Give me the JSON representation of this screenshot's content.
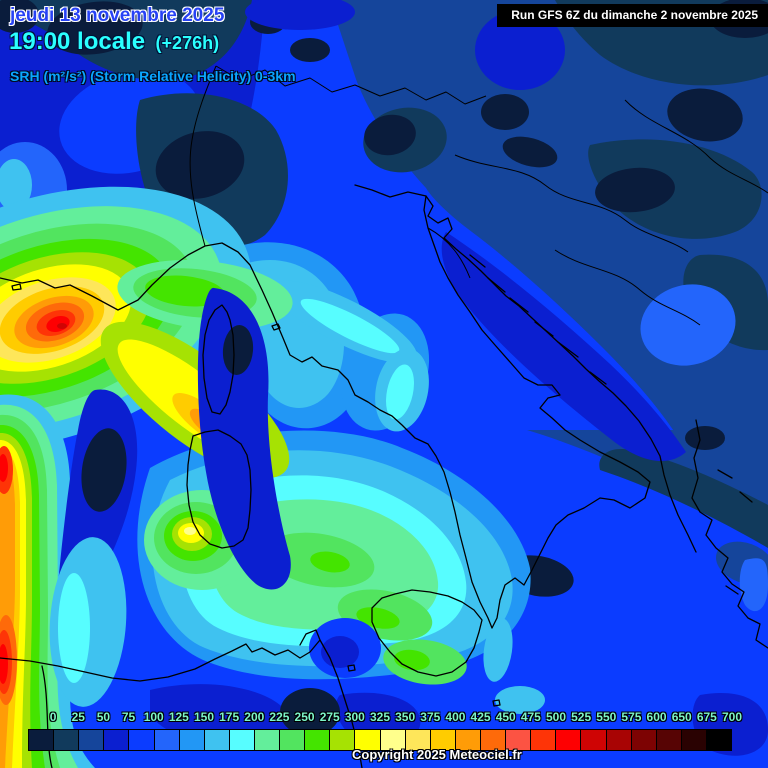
{
  "header": {
    "date": "jeudi 13 novembre 2025",
    "time": "19:00 locale",
    "forecast_offset": "(+276h)",
    "parameter": "SRH (m²/s²) (Storm Relative Helicity) 0-3km"
  },
  "run_info": {
    "label": "Run GFS 6Z du dimanche 2 novembre 2025"
  },
  "copyright": "Copyright 2025 Meteociel.fr",
  "colorbar": {
    "labels": [
      "0",
      "25",
      "50",
      "75",
      "100",
      "125",
      "150",
      "175",
      "200",
      "225",
      "250",
      "275",
      "300",
      "325",
      "350",
      "375",
      "400",
      "425",
      "450",
      "475",
      "500",
      "525",
      "550",
      "575",
      "600",
      "650",
      "675",
      "700"
    ],
    "cell_colors": [
      "#0A1C3C",
      "#113A5C",
      "#15459B",
      "#0B1FD0",
      "#0B3CFF",
      "#2365FB",
      "#2297F5",
      "#3FC2F0",
      "#57FDFF",
      "#63EE9B",
      "#52E45F",
      "#44E400",
      "#A6E203",
      "#FFFF00",
      "#FFFF8C",
      "#FEE65A",
      "#FFCC00",
      "#FF9C07",
      "#FE6A0A",
      "#FC5343",
      "#FE3407",
      "#FE0002",
      "#CF0404",
      "#A80404",
      "#7D0303",
      "#570404",
      "#2A0202",
      "#000000"
    ],
    "label_color": "#7DF5C8"
  },
  "colors": {
    "date_text": "#2742F5",
    "time_text": "#2BFFFF",
    "parameter_text": "#0AA6FF",
    "run_box_bg": "#000000",
    "run_box_text": "#FFFFFF",
    "map_base_sea": "#0B3CFF"
  }
}
